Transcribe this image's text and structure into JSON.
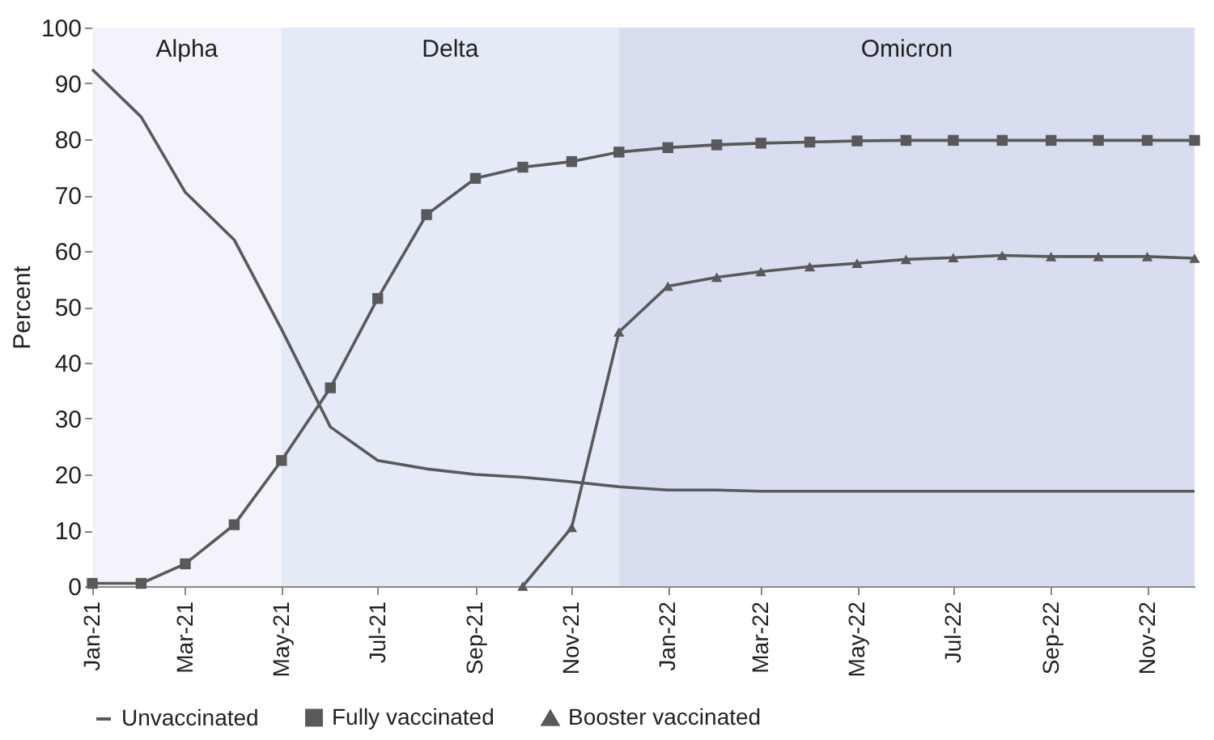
{
  "chart_data": {
    "type": "line",
    "ylabel": "Percent",
    "x": [
      "2021-01",
      "2021-02",
      "2021-03",
      "2021-04",
      "2021-05",
      "2021-06",
      "2021-07",
      "2021-08",
      "2021-09",
      "2021-10",
      "2021-11",
      "2021-12",
      "2022-01",
      "2022-02",
      "2022-03",
      "2022-04",
      "2022-05",
      "2022-06",
      "2022-07",
      "2022-08",
      "2022-09",
      "2022-10",
      "2022-11",
      "2022-12"
    ],
    "xlim": [
      "2021-01",
      "2022-12"
    ],
    "xticks": [
      {
        "value": "2021-01",
        "label": "Jan-21"
      },
      {
        "value": "2021-03",
        "label": "Mar-21"
      },
      {
        "value": "2021-05",
        "label": "May-21"
      },
      {
        "value": "2021-07",
        "label": "Jul-21"
      },
      {
        "value": "2021-09",
        "label": "Sep-21"
      },
      {
        "value": "2021-11",
        "label": "Nov-21"
      },
      {
        "value": "2022-01",
        "label": "Jan-22"
      },
      {
        "value": "2022-03",
        "label": "Mar-22"
      },
      {
        "value": "2022-05",
        "label": "May-22"
      },
      {
        "value": "2022-07",
        "label": "Jul-22"
      },
      {
        "value": "2022-09",
        "label": "Sep-22"
      },
      {
        "value": "2022-11",
        "label": "Nov-22"
      }
    ],
    "ylim": [
      0,
      100
    ],
    "yticks": [
      0,
      10,
      20,
      30,
      40,
      50,
      60,
      70,
      80,
      90,
      100
    ],
    "grid": false,
    "legend": "bottom",
    "line_style": "solid",
    "series": [
      {
        "name": "Unvaccinated",
        "color": "#595959",
        "marker": "none",
        "values": [
          92.5,
          84,
          70.5,
          62,
          46,
          28.5,
          22.5,
          21,
          20,
          19.5,
          18.7,
          17.8,
          17.2,
          17.2,
          17,
          17,
          17,
          17,
          17,
          17,
          17,
          17,
          17,
          17
        ]
      },
      {
        "name": "Fully vaccinated",
        "color": "#595959",
        "marker": "square",
        "values": [
          0.5,
          0.5,
          4,
          11,
          22.5,
          35.5,
          51.5,
          66.5,
          73,
          75,
          76,
          77.7,
          78.5,
          79,
          79.3,
          79.5,
          79.7,
          79.8,
          79.8,
          79.8,
          79.8,
          79.8,
          79.8,
          79.8
        ]
      },
      {
        "name": "Booster vaccinated",
        "color": "#595959",
        "marker": "triangle",
        "values": [
          null,
          null,
          null,
          null,
          null,
          null,
          null,
          null,
          null,
          0,
          10.5,
          45.5,
          53.7,
          55.3,
          56.3,
          57.2,
          57.8,
          58.5,
          58.8,
          59.2,
          59,
          59,
          59,
          58.7
        ]
      }
    ],
    "bands": [
      {
        "axis": "x",
        "from": "2021-01",
        "to": "2021-05",
        "label": "Alpha",
        "color": "#f3f4fb"
      },
      {
        "axis": "x",
        "from": "2021-05",
        "to": "2021-12",
        "label": "Delta",
        "color": "#e5eaf7"
      },
      {
        "axis": "x",
        "from": "2021-12",
        "to": "2022-12",
        "label": "Omicron",
        "color": "#d8deef"
      }
    ]
  }
}
